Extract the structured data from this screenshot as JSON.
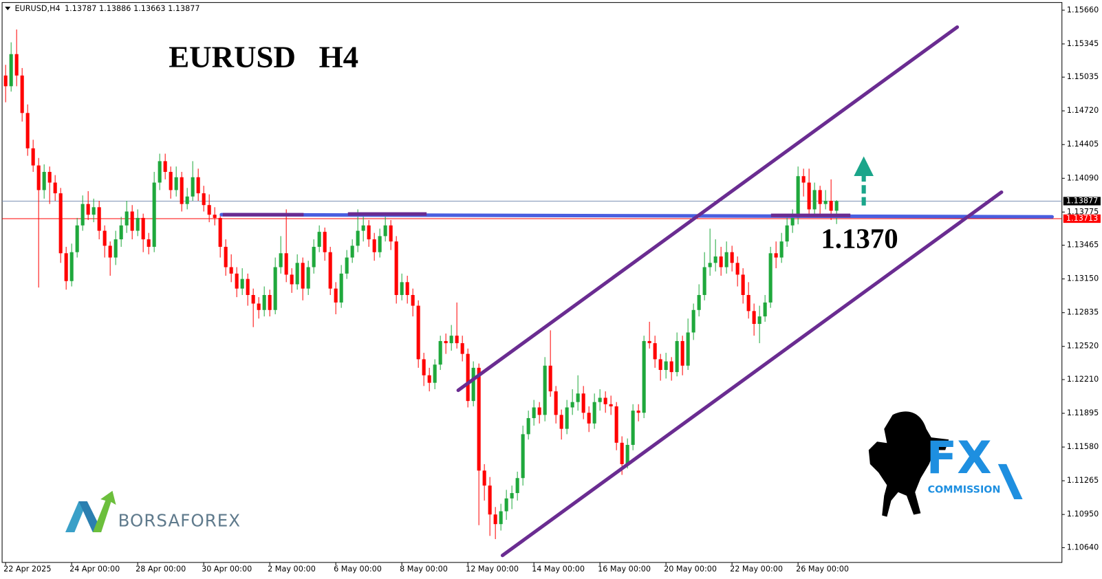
{
  "chart_data": {
    "type": "candlestick",
    "title": "EURUSD   H4",
    "symbol": "EURUSD,H4",
    "annotation": "1.1370",
    "up_color": "#1fa83c",
    "down_color": "#ff0000",
    "bid_color": "#000000",
    "price_line": {
      "value": 1.13713,
      "color": "#ff0000"
    },
    "ylim": [
      1.10502,
      1.15732
    ],
    "yticks": [
      {
        "value": 1.1566,
        "label": "1.15660"
      },
      1.15345,
      1.15035,
      {
        "value": 1.1472,
        "label": "1.14720"
      },
      1.14405,
      {
        "value": 1.1409,
        "label": "1.14090"
      },
      1.13775,
      1.13465,
      {
        "value": 1.1315,
        "label": "1.13150"
      },
      1.12835,
      {
        "value": 1.1252,
        "label": "1.12520"
      },
      {
        "value": 1.1221,
        "label": "1.12210"
      },
      1.11895,
      {
        "value": 1.1158,
        "label": "1.11580"
      },
      1.11265,
      {
        "value": 1.1095,
        "label": "1.10950"
      },
      {
        "value": 1.1064,
        "label": "1.10640"
      }
    ],
    "categories": [
      "22 Apr 2025",
      null,
      null,
      null,
      null,
      null,
      null,
      null,
      null,
      null,
      null,
      null,
      "24 Apr 00:00",
      null,
      null,
      null,
      null,
      null,
      null,
      null,
      null,
      null,
      null,
      null,
      "28 Apr 00:00",
      null,
      null,
      null,
      null,
      null,
      null,
      null,
      null,
      null,
      null,
      null,
      "30 Apr 00:00",
      null,
      null,
      null,
      null,
      null,
      null,
      null,
      null,
      null,
      null,
      null,
      "2 May 00:00",
      null,
      null,
      null,
      null,
      null,
      null,
      null,
      null,
      null,
      null,
      null,
      "6 May 00:00",
      null,
      null,
      null,
      null,
      null,
      null,
      null,
      null,
      null,
      null,
      null,
      "8 May 00:00",
      null,
      null,
      null,
      null,
      null,
      null,
      null,
      null,
      null,
      null,
      null,
      "12 May 00:00",
      null,
      null,
      null,
      null,
      null,
      null,
      null,
      null,
      null,
      null,
      null,
      "14 May 00:00",
      null,
      null,
      null,
      null,
      null,
      null,
      null,
      null,
      null,
      null,
      null,
      "16 May 00:00",
      null,
      null,
      null,
      null,
      null,
      null,
      null,
      null,
      null,
      null,
      null,
      "20 May 00:00",
      null,
      null,
      null,
      null,
      null,
      null,
      null,
      null,
      null,
      null,
      null,
      "22 May 00:00",
      null,
      null,
      null,
      null,
      null,
      null,
      null,
      null,
      null,
      null,
      null,
      "26 May 00:00",
      null,
      null,
      null,
      null,
      null,
      null,
      null
    ],
    "ohlc": [
      [
        1.1505,
        1.1515,
        1.148,
        1.1495
      ],
      [
        1.1495,
        1.1536,
        1.149,
        1.1525
      ],
      [
        1.1525,
        1.1548,
        1.1495,
        1.1505
      ],
      [
        1.1505,
        1.1512,
        1.1462,
        1.147
      ],
      [
        1.147,
        1.1478,
        1.143,
        1.1437
      ],
      [
        1.1437,
        1.1445,
        1.1415,
        1.1421
      ],
      [
        1.1421,
        1.1428,
        1.1307,
        1.1398
      ],
      [
        1.1398,
        1.1422,
        1.139,
        1.1415
      ],
      [
        1.1415,
        1.142,
        1.1385,
        1.1405
      ],
      [
        1.1405,
        1.1412,
        1.1388,
        1.1395
      ],
      [
        1.1395,
        1.14,
        1.133,
        1.1339
      ],
      [
        1.1339,
        1.1345,
        1.1305,
        1.1313
      ],
      [
        1.1313,
        1.1348,
        1.1308,
        1.134
      ],
      [
        1.134,
        1.1372,
        1.1335,
        1.1365
      ],
      [
        1.1365,
        1.1393,
        1.136,
        1.1385
      ],
      [
        1.1385,
        1.1397,
        1.137,
        1.1375
      ],
      [
        1.1375,
        1.139,
        1.1368,
        1.1382
      ],
      [
        1.1382,
        1.1388,
        1.1352,
        1.136
      ],
      [
        1.136,
        1.1365,
        1.1335,
        1.1346
      ],
      [
        1.1346,
        1.135,
        1.1318,
        1.1335
      ],
      [
        1.1335,
        1.136,
        1.1328,
        1.1352
      ],
      [
        1.1352,
        1.1373,
        1.1345,
        1.1365
      ],
      [
        1.1365,
        1.1388,
        1.1358,
        1.1378
      ],
      [
        1.1378,
        1.1384,
        1.1352,
        1.136
      ],
      [
        1.136,
        1.138,
        1.1355,
        1.1372
      ],
      [
        1.1372,
        1.1376,
        1.134,
        1.1352
      ],
      [
        1.1352,
        1.1358,
        1.1338,
        1.1345
      ],
      [
        1.1345,
        1.1415,
        1.134,
        1.1405
      ],
      [
        1.1405,
        1.1432,
        1.1398,
        1.1425
      ],
      [
        1.1425,
        1.1432,
        1.1408,
        1.1415
      ],
      [
        1.1415,
        1.142,
        1.139,
        1.1398
      ],
      [
        1.1398,
        1.142,
        1.1392,
        1.141
      ],
      [
        1.141,
        1.1415,
        1.1378,
        1.1385
      ],
      [
        1.1385,
        1.14,
        1.138,
        1.1392
      ],
      [
        1.1392,
        1.1425,
        1.1388,
        1.141
      ],
      [
        1.141,
        1.1418,
        1.1388,
        1.1395
      ],
      [
        1.1395,
        1.1402,
        1.1378,
        1.1384
      ],
      [
        1.1384,
        1.1394,
        1.1368,
        1.1375
      ],
      [
        1.1375,
        1.1382,
        1.1365,
        1.1372
      ],
      [
        1.1372,
        1.1376,
        1.1335,
        1.1345
      ],
      [
        1.1345,
        1.1352,
        1.1318,
        1.1326
      ],
      [
        1.1326,
        1.1338,
        1.1312,
        1.132
      ],
      [
        1.132,
        1.1326,
        1.1298,
        1.1306
      ],
      [
        1.1306,
        1.1325,
        1.13,
        1.1315
      ],
      [
        1.1315,
        1.132,
        1.129,
        1.13
      ],
      [
        1.13,
        1.1306,
        1.127,
        1.1292
      ],
      [
        1.1292,
        1.1298,
        1.1278,
        1.1286
      ],
      [
        1.1286,
        1.1308,
        1.128,
        1.13
      ],
      [
        1.13,
        1.1305,
        1.128,
        1.1286
      ],
      [
        1.1286,
        1.1335,
        1.1282,
        1.1326
      ],
      [
        1.1326,
        1.1355,
        1.132,
        1.1339
      ],
      [
        1.1339,
        1.138,
        1.1312,
        1.1319
      ],
      [
        1.1319,
        1.1325,
        1.1302,
        1.131
      ],
      [
        1.131,
        1.1338,
        1.1305,
        1.133
      ],
      [
        1.133,
        1.1335,
        1.1295,
        1.1306
      ],
      [
        1.1306,
        1.1332,
        1.13,
        1.1326
      ],
      [
        1.1326,
        1.1352,
        1.132,
        1.1345
      ],
      [
        1.1345,
        1.1365,
        1.134,
        1.1359
      ],
      [
        1.1359,
        1.1363,
        1.1332,
        1.134
      ],
      [
        1.134,
        1.1345,
        1.13,
        1.1306
      ],
      [
        1.1306,
        1.1312,
        1.1282,
        1.1293
      ],
      [
        1.1293,
        1.1328,
        1.1288,
        1.132
      ],
      [
        1.132,
        1.1342,
        1.1315,
        1.1335
      ],
      [
        1.1335,
        1.1352,
        1.133,
        1.1346
      ],
      [
        1.1346,
        1.138,
        1.134,
        1.136
      ],
      [
        1.136,
        1.1375,
        1.135,
        1.1365
      ],
      [
        1.1365,
        1.137,
        1.1345,
        1.1352
      ],
      [
        1.1352,
        1.1358,
        1.1332,
        1.134
      ],
      [
        1.134,
        1.1362,
        1.1335,
        1.1355
      ],
      [
        1.1355,
        1.1376,
        1.135,
        1.1365
      ],
      [
        1.1365,
        1.137,
        1.1342,
        1.135
      ],
      [
        1.135,
        1.1355,
        1.1292,
        1.13
      ],
      [
        1.13,
        1.132,
        1.1295,
        1.1312
      ],
      [
        1.1312,
        1.1318,
        1.1292,
        1.13
      ],
      [
        1.13,
        1.1306,
        1.128,
        1.129
      ],
      [
        1.129,
        1.1295,
        1.1232,
        1.124
      ],
      [
        1.124,
        1.1246,
        1.1215,
        1.1225
      ],
      [
        1.1225,
        1.1232,
        1.121,
        1.1218
      ],
      [
        1.1218,
        1.124,
        1.1212,
        1.1235
      ],
      [
        1.1235,
        1.1262,
        1.123,
        1.1257
      ],
      [
        1.1257,
        1.1264,
        1.1245,
        1.1255
      ],
      [
        1.1255,
        1.1272,
        1.1248,
        1.1262
      ],
      [
        1.1262,
        1.1293,
        1.125,
        1.1255
      ],
      [
        1.1255,
        1.1262,
        1.1238,
        1.1245
      ],
      [
        1.1245,
        1.125,
        1.1195,
        1.1201
      ],
      [
        1.1201,
        1.1238,
        1.1196,
        1.1232
      ],
      [
        1.1232,
        1.1236,
        1.1085,
        1.1136
      ],
      [
        1.1136,
        1.1142,
        1.1108,
        1.1122
      ],
      [
        1.1122,
        1.113,
        1.1075,
        1.1095
      ],
      [
        1.1095,
        1.1102,
        1.1072,
        1.1086
      ],
      [
        1.1086,
        1.1105,
        1.108,
        1.1098
      ],
      [
        1.1098,
        1.1118,
        1.109,
        1.111
      ],
      [
        1.111,
        1.1122,
        1.11,
        1.1115
      ],
      [
        1.1115,
        1.1135,
        1.1108,
        1.1129
      ],
      [
        1.1129,
        1.1178,
        1.1122,
        1.117
      ],
      [
        1.117,
        1.1192,
        1.1165,
        1.1185
      ],
      [
        1.1185,
        1.1202,
        1.1178,
        1.1195
      ],
      [
        1.1195,
        1.12,
        1.118,
        1.1188
      ],
      [
        1.1188,
        1.1242,
        1.1182,
        1.1234
      ],
      [
        1.1234,
        1.1267,
        1.1205,
        1.121
      ],
      [
        1.121,
        1.1215,
        1.118,
        1.1188
      ],
      [
        1.1188,
        1.1193,
        1.1165,
        1.1175
      ],
      [
        1.1175,
        1.1202,
        1.117,
        1.1195
      ],
      [
        1.1195,
        1.1212,
        1.1188,
        1.12
      ],
      [
        1.12,
        1.1225,
        1.1192,
        1.1208
      ],
      [
        1.1208,
        1.1215,
        1.1184,
        1.119
      ],
      [
        1.119,
        1.1196,
        1.1172,
        1.118
      ],
      [
        1.118,
        1.1208,
        1.1175,
        1.12
      ],
      [
        1.12,
        1.1212,
        1.1192,
        1.1204
      ],
      [
        1.1204,
        1.121,
        1.119,
        1.1198
      ],
      [
        1.1198,
        1.1206,
        1.1188,
        1.1196
      ],
      [
        1.1196,
        1.12,
        1.1155,
        1.1162
      ],
      [
        1.1162,
        1.1168,
        1.1132,
        1.1142
      ],
      [
        1.1142,
        1.1166,
        1.1138,
        1.116
      ],
      [
        1.116,
        1.1198,
        1.1155,
        1.1192
      ],
      [
        1.1192,
        1.1198,
        1.1182,
        1.119
      ],
      [
        1.119,
        1.1262,
        1.1185,
        1.1257
      ],
      [
        1.1257,
        1.1275,
        1.125,
        1.1255
      ],
      [
        1.1255,
        1.1262,
        1.1232,
        1.124
      ],
      [
        1.124,
        1.1245,
        1.122,
        1.123
      ],
      [
        1.123,
        1.1246,
        1.1222,
        1.1238
      ],
      [
        1.1238,
        1.1242,
        1.122,
        1.1228
      ],
      [
        1.1228,
        1.1265,
        1.1224,
        1.1257
      ],
      [
        1.1257,
        1.1262,
        1.1225,
        1.1234
      ],
      [
        1.1234,
        1.1278,
        1.123,
        1.1265
      ],
      [
        1.1265,
        1.1292,
        1.1258,
        1.1286
      ],
      [
        1.1286,
        1.131,
        1.128,
        1.13
      ],
      [
        1.13,
        1.134,
        1.1295,
        1.1326
      ],
      [
        1.1326,
        1.1362,
        1.1318,
        1.133
      ],
      [
        1.133,
        1.1352,
        1.1322,
        1.1336
      ],
      [
        1.1336,
        1.1345,
        1.1318,
        1.1326
      ],
      [
        1.1326,
        1.135,
        1.132,
        1.134
      ],
      [
        1.134,
        1.1346,
        1.1322,
        1.133
      ],
      [
        1.133,
        1.1336,
        1.1308,
        1.1319
      ],
      [
        1.1319,
        1.1325,
        1.1292,
        1.13
      ],
      [
        1.13,
        1.1312,
        1.1278,
        1.1285
      ],
      [
        1.1285,
        1.1292,
        1.1262,
        1.1273
      ],
      [
        1.1273,
        1.129,
        1.1255,
        1.128
      ],
      [
        1.128,
        1.13,
        1.1275,
        1.1293
      ],
      [
        1.1293,
        1.1345,
        1.1288,
        1.1339
      ],
      [
        1.1339,
        1.135,
        1.1325,
        1.1335
      ],
      [
        1.1335,
        1.1358,
        1.133,
        1.135
      ],
      [
        1.135,
        1.1372,
        1.1345,
        1.1365
      ],
      [
        1.1365,
        1.138,
        1.1358,
        1.1372
      ],
      [
        1.1372,
        1.142,
        1.1366,
        1.1411
      ],
      [
        1.1411,
        1.1418,
        1.1392,
        1.1405
      ],
      [
        1.1405,
        1.1418,
        1.1372,
        1.138
      ],
      [
        1.138,
        1.1405,
        1.1375,
        1.1398
      ],
      [
        1.1398,
        1.1402,
        1.1375,
        1.1385
      ],
      [
        1.1385,
        1.1398,
        1.138,
        1.1388
      ],
      [
        1.1388,
        1.1408,
        1.137,
        1.13787
      ],
      [
        1.13787,
        1.13886,
        1.13663,
        1.13877
      ]
    ]
  },
  "logos": {
    "left": "BORSAFOREX",
    "right_main": "FX",
    "right_sub": "COMMISSION"
  }
}
